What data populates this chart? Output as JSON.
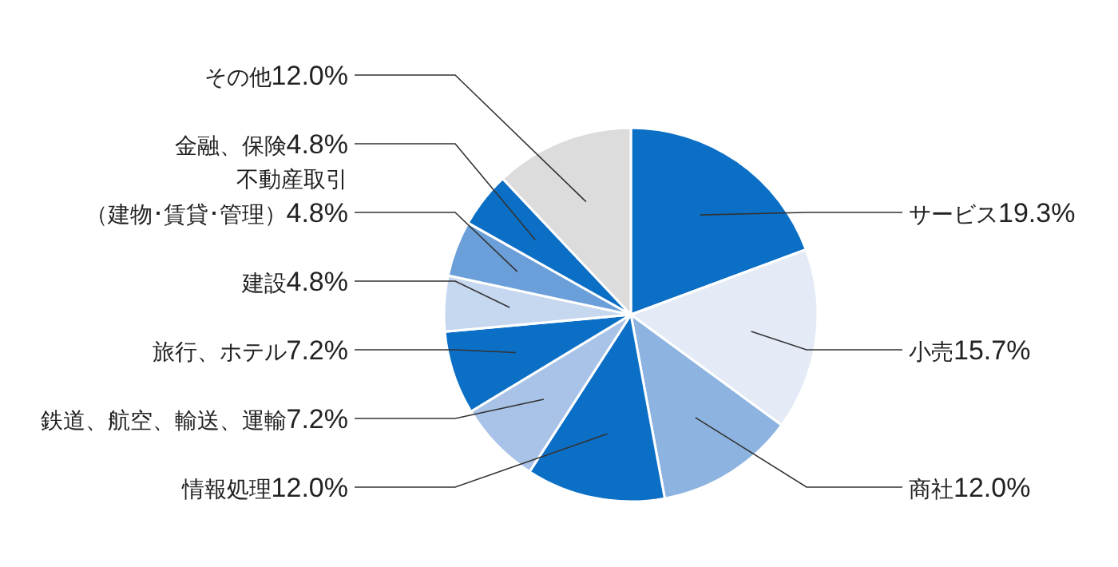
{
  "chart_data": {
    "type": "pie",
    "categories": [
      "サービス",
      "小売",
      "商社",
      "情報処理",
      "鉄道、航空、輸送、運輸",
      "旅行、ホテル",
      "建設",
      "不動産取引（建物･賃貸･管理）",
      "金融、保険",
      "その他"
    ],
    "values": [
      19.3,
      15.7,
      12.0,
      12.0,
      7.2,
      7.2,
      4.8,
      4.8,
      4.8,
      12.0
    ],
    "value_labels": [
      "19.3%",
      "15.7%",
      "12.0%",
      "12.0%",
      "7.2%",
      "7.2%",
      "4.8%",
      "4.8%",
      "4.8%",
      "12.0%"
    ],
    "colors": [
      "#0b6fc6",
      "#e4ebf7",
      "#8db3e0",
      "#0b6fc6",
      "#a9c3e8",
      "#0b6fc6",
      "#c6d7f0",
      "#6b9fd9",
      "#0b6fc6",
      "#dcdcdc"
    ]
  }
}
